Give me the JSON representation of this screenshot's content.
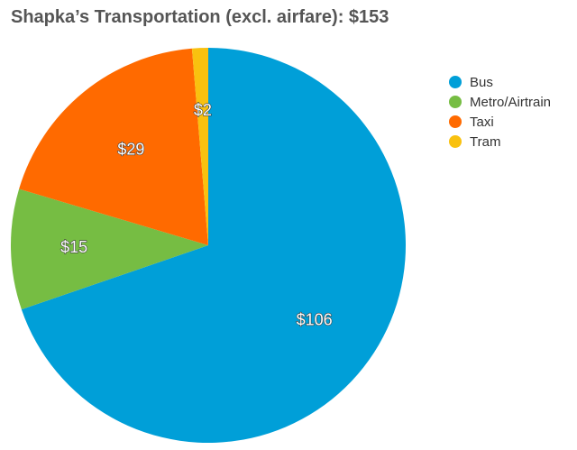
{
  "chart_data": {
    "type": "pie",
    "title": "Shapka’s Transportation (excl. airfare): $153",
    "categories": [
      "Bus",
      "Metro/Airtrain",
      "Taxi",
      "Tram"
    ],
    "values": [
      106,
      15,
      29,
      2
    ],
    "labels": [
      "$106",
      "$15",
      "$29",
      "$2"
    ],
    "colors": [
      "#009fd8",
      "#76bd43",
      "#ff6a00",
      "#f9c10f"
    ],
    "legend_position": "top-right"
  }
}
